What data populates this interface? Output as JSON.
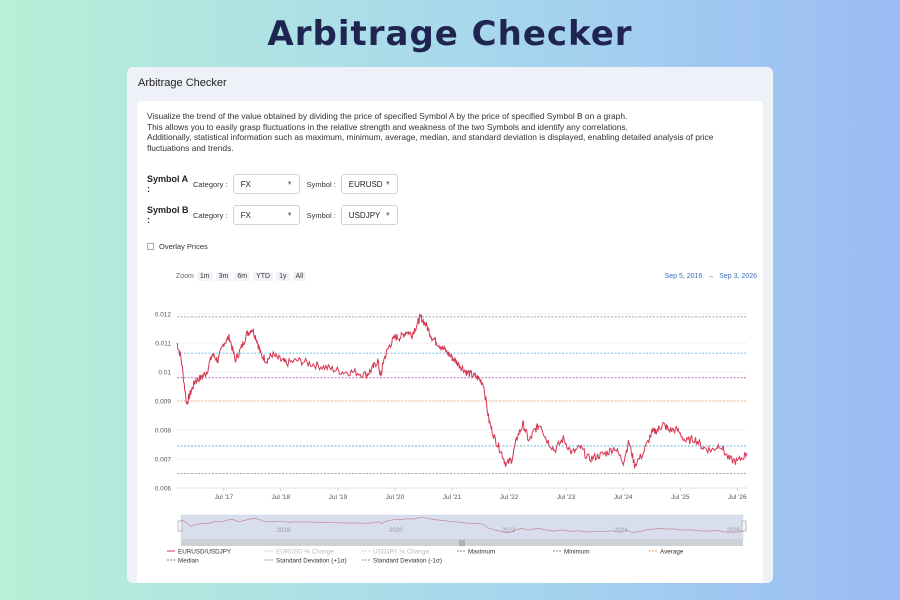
{
  "page": {
    "title": "Arbitrage Checker"
  },
  "card": {
    "header": "Arbitrage Checker",
    "description": [
      "Visualize the trend of the value obtained by dividing the price of specified Symbol A by the price of specified Symbol B on a graph.",
      "This allows you to easily grasp fluctuations in the relative strength and weakness of the two Symbols and identify any correlations.",
      "Additionally, statistical information such as maximum, minimum, average, median, and standard deviation is displayed, enabling detailed analysis of price fluctuations and trends."
    ]
  },
  "symbol_a": {
    "label": "Symbol A :",
    "category_label": "Category :",
    "category": "FX",
    "symbol_label": "Symbol :",
    "symbol": "EURUSD"
  },
  "symbol_b": {
    "label": "Symbol B :",
    "category_label": "Category :",
    "category": "FX",
    "symbol_label": "Symbol :",
    "symbol": "USDJPY"
  },
  "overlay": {
    "label": "Overlay Prices",
    "checked": false
  },
  "zoom": {
    "label": "Zoom",
    "buttons": [
      "1m",
      "3m",
      "6m",
      "YTD",
      "1y",
      "All"
    ]
  },
  "date_range": {
    "from": "Sep 5, 2016",
    "arrow": "→",
    "to": "Sep 3, 2026"
  },
  "colors": {
    "series": "#d4364f",
    "maximum": "#888888",
    "minimum": "#888888",
    "average": "#f0a050",
    "median": "#b060b0",
    "stdev": "#4aaed8"
  },
  "chart_data": {
    "type": "line",
    "y_ticks": [
      "0.012",
      "0.011",
      "0.01",
      "0.009",
      "0.008",
      "0.007",
      "0.006"
    ],
    "ylim": [
      0.006,
      0.012
    ],
    "x_ticks": [
      "Jul '17",
      "Jul '18",
      "Jul '19",
      "Jul '20",
      "Jul '21",
      "Jul '22",
      "Jul '23",
      "Jul '24",
      "Jul '25",
      "Jul '26"
    ],
    "xlim": [
      2016.68,
      2026.67
    ],
    "navigator_ticks": [
      "2018",
      "2020",
      "2022",
      "2024",
      "2026"
    ],
    "series": [
      {
        "name": "EURUSD/USDJPY",
        "x": [
          2016.68,
          2016.75,
          2016.85,
          2016.92,
          2017.0,
          2017.1,
          2017.2,
          2017.3,
          2017.4,
          2017.5,
          2017.6,
          2017.7,
          2017.8,
          2017.9,
          2018.0,
          2018.08,
          2018.15,
          2018.25,
          2018.35,
          2018.5,
          2018.6,
          2018.8,
          2019.0,
          2019.2,
          2019.4,
          2019.6,
          2019.8,
          2020.0,
          2020.1,
          2020.2,
          2020.25,
          2020.3,
          2020.4,
          2020.5,
          2020.6,
          2020.7,
          2020.8,
          2020.9,
          2020.95,
          2021.05,
          2021.15,
          2021.25,
          2021.35,
          2021.45,
          2021.55,
          2021.65,
          2021.75,
          2021.85,
          2021.95,
          2022.05,
          2022.15,
          2022.25,
          2022.35,
          2022.45,
          2022.55,
          2022.65,
          2022.75,
          2022.85,
          2022.95,
          2023.05,
          2023.15,
          2023.3,
          2023.45,
          2023.6,
          2023.75,
          2023.9,
          2024.05,
          2024.2,
          2024.35,
          2024.5,
          2024.6,
          2024.7,
          2024.85,
          2025.0,
          2025.1,
          2025.2,
          2025.3,
          2025.45,
          2025.6,
          2025.75,
          2025.9,
          2026.05,
          2026.2,
          2026.35,
          2026.5,
          2026.67
        ],
        "y": [
          0.011,
          0.0105,
          0.0089,
          0.0093,
          0.0097,
          0.0098,
          0.01,
          0.0106,
          0.0104,
          0.011,
          0.0112,
          0.0104,
          0.0108,
          0.0113,
          0.0115,
          0.0111,
          0.0106,
          0.0104,
          0.0106,
          0.0104,
          0.0103,
          0.0104,
          0.0103,
          0.0102,
          0.0101,
          0.01,
          0.01,
          0.0099,
          0.0101,
          0.0104,
          0.0098,
          0.0104,
          0.0109,
          0.0112,
          0.0112,
          0.0114,
          0.0113,
          0.0117,
          0.0119,
          0.0116,
          0.0112,
          0.011,
          0.0108,
          0.0106,
          0.0104,
          0.0102,
          0.01,
          0.0099,
          0.0098,
          0.0096,
          0.0083,
          0.0077,
          0.0073,
          0.0068,
          0.007,
          0.0078,
          0.0082,
          0.0076,
          0.008,
          0.0082,
          0.0077,
          0.0073,
          0.0077,
          0.0072,
          0.0074,
          0.007,
          0.0071,
          0.0072,
          0.0074,
          0.0069,
          0.0076,
          0.0068,
          0.0072,
          0.0079,
          0.008,
          0.0082,
          0.008,
          0.008,
          0.0076,
          0.0077,
          0.0074,
          0.0073,
          0.0075,
          0.007,
          0.0069,
          0.0072
        ]
      }
    ],
    "reference_lines": [
      {
        "name": "Maximum",
        "value": 0.0119
      },
      {
        "name": "Standard Deviation (+1σ)",
        "value": 0.01065
      },
      {
        "name": "Median",
        "value": 0.0098
      },
      {
        "name": "Average",
        "value": 0.009
      },
      {
        "name": "Standard Deviation (-1σ)",
        "value": 0.00745
      },
      {
        "name": "Minimum",
        "value": 0.0065
      }
    ],
    "legend": [
      {
        "name": "EURUSD/USDJPY",
        "style": "solid",
        "color": "#d4364f",
        "enabled": true
      },
      {
        "name": "EURUSD % Change",
        "style": "dash",
        "color": "#cccccc",
        "enabled": false
      },
      {
        "name": "USDJPY % Change",
        "style": "dash",
        "color": "#cccccc",
        "enabled": false
      },
      {
        "name": "Maximum",
        "style": "dash",
        "color": "#888888",
        "enabled": true
      },
      {
        "name": "Minimum",
        "style": "dash",
        "color": "#888888",
        "enabled": true
      },
      {
        "name": "Average",
        "style": "dash",
        "color": "#f0a050",
        "enabled": true
      },
      {
        "name": "Median",
        "style": "dash",
        "color": "#b060b0",
        "enabled": true
      },
      {
        "name": "Standard Deviation (+1σ)",
        "style": "dash",
        "color": "#4aaed8",
        "enabled": true
      },
      {
        "name": "Standard Deviation (-1σ)",
        "style": "dash",
        "color": "#4aaed8",
        "enabled": true
      }
    ],
    "navigator_scroll_icon": "grip-icon",
    "legend_placement": "bottom",
    "grid": true
  }
}
